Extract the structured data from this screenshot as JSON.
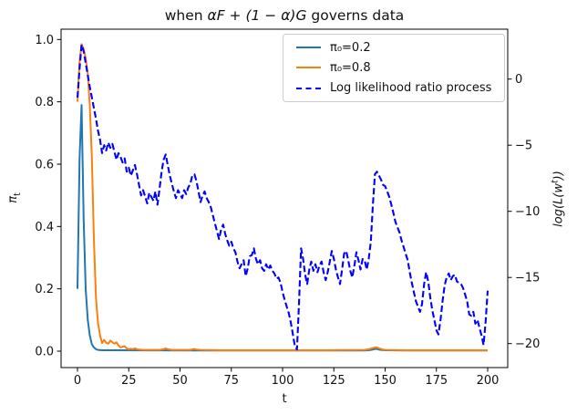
{
  "figure": {
    "title": {
      "pre": "when ",
      "math": "αF + (1 − α)G",
      "post": " governs data"
    },
    "x_axis": {
      "label": "t",
      "ticks": [
        {
          "v": 0,
          "label": "0"
        },
        {
          "v": 25,
          "label": "25"
        },
        {
          "v": 50,
          "label": "50"
        },
        {
          "v": 75,
          "label": "75"
        },
        {
          "v": 100,
          "label": "100"
        },
        {
          "v": 125,
          "label": "125"
        },
        {
          "v": 150,
          "label": "150"
        },
        {
          "v": 175,
          "label": "175"
        },
        {
          "v": 200,
          "label": "200"
        }
      ]
    },
    "y_left": {
      "symbol": "π",
      "sub": "t",
      "ticks": [
        {
          "v": 0.0,
          "label": "0.0"
        },
        {
          "v": 0.2,
          "label": "0.2"
        },
        {
          "v": 0.4,
          "label": "0.4"
        },
        {
          "v": 0.6,
          "label": "0.6"
        },
        {
          "v": 0.8,
          "label": "0.8"
        },
        {
          "v": 1.0,
          "label": "1.0"
        }
      ]
    },
    "y_right": {
      "pre": "log(L(w",
      "sup": "t",
      "post": "))",
      "ticks": [
        {
          "v": 0,
          "label": "0"
        },
        {
          "v": -5,
          "label": "−5"
        },
        {
          "v": -10,
          "label": "−10"
        },
        {
          "v": -15,
          "label": "−15"
        },
        {
          "v": -20,
          "label": "−20"
        }
      ]
    },
    "legend": [
      {
        "label": "π₀=0.2",
        "color": "#1f77b4",
        "dash": false
      },
      {
        "label": "π₀=0.8",
        "color": "#ff7f0e",
        "dash": false
      },
      {
        "label": "Log likelihood ratio process",
        "color": "#0000ff",
        "dash": true
      }
    ],
    "colors": {
      "frame": "#000000",
      "background": "#ffffff"
    }
  },
  "chart_data": {
    "type": "line",
    "title": "when αF + (1 − α)G governs data",
    "xlabel": "t",
    "ylabel_left": "π_t",
    "ylabel_right": "log(L(w^t))",
    "xlim": [
      -8,
      210
    ],
    "ylim_left": [
      -0.05,
      1.03
    ],
    "ylim_right": [
      -21.5,
      3.9
    ],
    "grid": false,
    "legend_position": "upper right",
    "series": [
      {
        "name": "π₀=0.2",
        "axis": "left",
        "color": "#1f77b4",
        "style": "solid",
        "width": 2,
        "points": [
          [
            0,
            0.2
          ],
          [
            1,
            0.62
          ],
          [
            2,
            0.79
          ],
          [
            3,
            0.42
          ],
          [
            4,
            0.2
          ],
          [
            5,
            0.1
          ],
          [
            6,
            0.05
          ],
          [
            7,
            0.022
          ],
          [
            8,
            0.012
          ],
          [
            9,
            0.006
          ],
          [
            10,
            0.004
          ],
          [
            12,
            0.003
          ],
          [
            20,
            0.003
          ],
          [
            30,
            0.0025
          ],
          [
            60,
            0.002
          ],
          [
            100,
            0.002
          ],
          [
            140,
            0.002
          ],
          [
            142,
            0.003
          ],
          [
            144,
            0.005
          ],
          [
            145,
            0.007
          ],
          [
            146,
            0.007
          ],
          [
            147,
            0.005
          ],
          [
            148,
            0.004
          ],
          [
            150,
            0.003
          ],
          [
            160,
            0.002
          ],
          [
            200,
            0.002
          ]
        ]
      },
      {
        "name": "π₀=0.8",
        "axis": "left",
        "color": "#ff7f0e",
        "style": "solid",
        "width": 2,
        "points": [
          [
            0,
            0.8
          ],
          [
            1,
            0.93
          ],
          [
            2,
            0.985
          ],
          [
            3,
            0.97
          ],
          [
            4,
            0.94
          ],
          [
            5,
            0.89
          ],
          [
            6,
            0.79
          ],
          [
            7,
            0.62
          ],
          [
            8,
            0.36
          ],
          [
            9,
            0.17
          ],
          [
            10,
            0.09
          ],
          [
            11,
            0.05
          ],
          [
            12,
            0.026
          ],
          [
            13,
            0.036
          ],
          [
            14,
            0.027
          ],
          [
            15,
            0.024
          ],
          [
            16,
            0.034
          ],
          [
            17,
            0.028
          ],
          [
            18,
            0.024
          ],
          [
            19,
            0.028
          ],
          [
            20,
            0.018
          ],
          [
            21,
            0.012
          ],
          [
            22,
            0.014
          ],
          [
            23,
            0.016
          ],
          [
            24,
            0.009
          ],
          [
            25,
            0.006
          ],
          [
            26,
            0.008
          ],
          [
            27,
            0.006
          ],
          [
            28,
            0.009
          ],
          [
            29,
            0.006
          ],
          [
            30,
            0.005
          ],
          [
            32,
            0.004
          ],
          [
            35,
            0.004
          ],
          [
            40,
            0.004
          ],
          [
            42,
            0.006
          ],
          [
            43,
            0.009
          ],
          [
            44,
            0.006
          ],
          [
            46,
            0.004
          ],
          [
            50,
            0.004
          ],
          [
            55,
            0.004
          ],
          [
            57,
            0.007
          ],
          [
            58,
            0.005
          ],
          [
            60,
            0.004
          ],
          [
            70,
            0.003
          ],
          [
            80,
            0.003
          ],
          [
            100,
            0.003
          ],
          [
            120,
            0.003
          ],
          [
            140,
            0.004
          ],
          [
            142,
            0.006
          ],
          [
            144,
            0.01
          ],
          [
            145,
            0.012
          ],
          [
            146,
            0.012
          ],
          [
            147,
            0.009
          ],
          [
            148,
            0.007
          ],
          [
            149,
            0.005
          ],
          [
            150,
            0.004
          ],
          [
            160,
            0.003
          ],
          [
            180,
            0.003
          ],
          [
            200,
            0.003
          ]
        ]
      },
      {
        "name": "Log likelihood ratio process",
        "axis": "right",
        "color": "#0000ff",
        "style": "dashed",
        "width": 2.1,
        "t0": 0,
        "dt": 1,
        "values": [
          -1.4,
          0.8,
          2.6,
          2.1,
          1.2,
          0.3,
          -0.6,
          -1.4,
          -2.2,
          -3.0,
          -3.9,
          -4.6,
          -5.6,
          -5.0,
          -5.4,
          -4.8,
          -5.2,
          -4.9,
          -5.5,
          -6.1,
          -5.6,
          -5.9,
          -6.3,
          -6.0,
          -7.0,
          -6.7,
          -7.3,
          -6.9,
          -6.5,
          -7.2,
          -8.0,
          -8.8,
          -8.4,
          -8.9,
          -9.4,
          -8.6,
          -8.9,
          -9.2,
          -8.5,
          -9.5,
          -8.3,
          -7.0,
          -6.1,
          -5.7,
          -6.5,
          -7.3,
          -7.9,
          -8.5,
          -9.0,
          -8.4,
          -8.7,
          -9.0,
          -8.4,
          -8.7,
          -8.2,
          -7.9,
          -7.3,
          -7.2,
          -7.7,
          -8.5,
          -9.3,
          -8.8,
          -8.5,
          -9.0,
          -9.3,
          -9.7,
          -10.3,
          -10.9,
          -11.5,
          -12.1,
          -11.4,
          -11.0,
          -11.7,
          -12.2,
          -12.6,
          -12.3,
          -12.8,
          -13.1,
          -13.8,
          -14.3,
          -14.0,
          -13.7,
          -14.9,
          -14.3,
          -13.4,
          -13.3,
          -12.8,
          -13.6,
          -14.0,
          -13.7,
          -14.3,
          -14.5,
          -14.0,
          -14.4,
          -14.1,
          -14.5,
          -14.7,
          -15.1,
          -15.0,
          -15.4,
          -16.1,
          -16.7,
          -17.2,
          -17.7,
          -18.4,
          -19.3,
          -20.2,
          -20.45,
          -17.0,
          -12.8,
          -13.6,
          -14.8,
          -15.5,
          -14.4,
          -13.8,
          -14.5,
          -14.0,
          -14.6,
          -14.1,
          -13.8,
          -14.6,
          -15.2,
          -14.6,
          -13.8,
          -13.0,
          -13.6,
          -14.4,
          -15.0,
          -15.5,
          -14.4,
          -13.2,
          -13.0,
          -13.7,
          -14.5,
          -15.0,
          -14.1,
          -13.1,
          -13.7,
          -14.4,
          -13.6,
          -13.7,
          -14.4,
          -13.6,
          -12.3,
          -9.6,
          -7.2,
          -7.0,
          -7.3,
          -7.6,
          -8.0,
          -8.1,
          -8.5,
          -8.9,
          -9.5,
          -10.1,
          -10.8,
          -11.2,
          -11.6,
          -12.2,
          -12.7,
          -13.2,
          -13.7,
          -14.6,
          -15.4,
          -16.1,
          -16.8,
          -17.2,
          -17.6,
          -17.0,
          -15.5,
          -14.6,
          -15.3,
          -16.5,
          -17.5,
          -18.2,
          -19.0,
          -19.3,
          -18.2,
          -16.8,
          -15.6,
          -15.0,
          -14.7,
          -15.2,
          -14.9,
          -14.8,
          -15.3,
          -15.4,
          -15.5,
          -15.8,
          -16.3,
          -16.8,
          -17.8,
          -17.9,
          -17.6,
          -18.5,
          -18.2,
          -18.8,
          -19.4,
          -20.1,
          -18.3,
          -16.0
        ]
      }
    ]
  }
}
